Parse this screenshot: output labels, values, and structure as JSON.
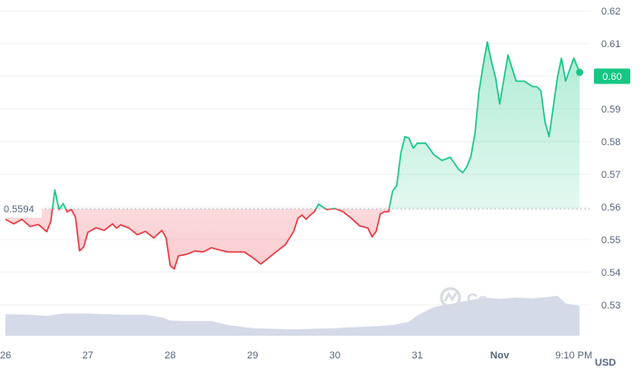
{
  "chart_data": {
    "type": "line",
    "currency": "USD",
    "ylim": [
      0.525,
      0.62
    ],
    "y_ticks": [
      "0.62",
      "0.61",
      "0.60",
      "0.59",
      "0.58",
      "0.57",
      "0.56",
      "0.55",
      "0.54",
      "0.53"
    ],
    "x_ticks": [
      {
        "label": "26",
        "t": 0.0
      },
      {
        "label": "27",
        "t": 1.0
      },
      {
        "label": "28",
        "t": 2.0
      },
      {
        "label": "29",
        "t": 3.0
      },
      {
        "label": "30",
        "t": 4.0
      },
      {
        "label": "31",
        "t": 5.0
      },
      {
        "label": "Nov",
        "t": 6.0,
        "bold": true
      },
      {
        "label": "9:10 PM",
        "t": 6.9
      }
    ],
    "xlim": [
      0.0,
      7.0
    ],
    "reference_price": 0.5594,
    "reference_label": "0.5594",
    "current_price": 0.6,
    "current_label": "0.60",
    "colors": {
      "up": "#16c784",
      "down": "#ea3943",
      "volume": "#cfd6e4",
      "grid": "#eff2f5",
      "tick": "#58667e"
    },
    "price_series": {
      "t": [
        0.0,
        0.1,
        0.2,
        0.3,
        0.4,
        0.5,
        0.55,
        0.6,
        0.65,
        0.7,
        0.75,
        0.8,
        0.85,
        0.9,
        0.95,
        1.0,
        1.1,
        1.2,
        1.3,
        1.35,
        1.4,
        1.5,
        1.6,
        1.7,
        1.8,
        1.9,
        1.95,
        2.0,
        2.05,
        2.1,
        2.2,
        2.3,
        2.4,
        2.5,
        2.6,
        2.7,
        2.8,
        2.9,
        3.0,
        3.1,
        3.2,
        3.3,
        3.4,
        3.5,
        3.55,
        3.6,
        3.65,
        3.7,
        3.75,
        3.8,
        3.9,
        4.0,
        4.1,
        4.2,
        4.3,
        4.4,
        4.45,
        4.5,
        4.55,
        4.6,
        4.65,
        4.7,
        4.75,
        4.8,
        4.85,
        4.9,
        4.95,
        5.0,
        5.1,
        5.2,
        5.3,
        5.4,
        5.5,
        5.55,
        5.6,
        5.65,
        5.7,
        5.75,
        5.8,
        5.85,
        5.9,
        5.95,
        6.0,
        6.1,
        6.2,
        6.3,
        6.4,
        6.45,
        6.5,
        6.55,
        6.6,
        6.7,
        6.75,
        6.8,
        6.9,
        6.97
      ],
      "values": [
        0.5562,
        0.5548,
        0.5562,
        0.554,
        0.5546,
        0.5524,
        0.5555,
        0.5652,
        0.5592,
        0.561,
        0.5585,
        0.5592,
        0.5568,
        0.5465,
        0.5478,
        0.5522,
        0.5536,
        0.5528,
        0.5548,
        0.5535,
        0.5545,
        0.5535,
        0.5515,
        0.5525,
        0.5505,
        0.5528,
        0.5505,
        0.542,
        0.541,
        0.545,
        0.5455,
        0.5465,
        0.5462,
        0.5475,
        0.5468,
        0.5462,
        0.5462,
        0.5462,
        0.5445,
        0.5425,
        0.5445,
        0.5465,
        0.5485,
        0.5525,
        0.5565,
        0.5575,
        0.5562,
        0.5575,
        0.5585,
        0.5608,
        0.5592,
        0.5595,
        0.5585,
        0.5565,
        0.5542,
        0.5535,
        0.5508,
        0.5525,
        0.5578,
        0.5585,
        0.5585,
        0.5648,
        0.5665,
        0.5765,
        0.5815,
        0.581,
        0.578,
        0.5795,
        0.5795,
        0.576,
        0.5742,
        0.5752,
        0.5715,
        0.5705,
        0.5722,
        0.5755,
        0.5825,
        0.5955,
        0.6035,
        0.6105,
        0.6045,
        0.5995,
        0.5915,
        0.6065,
        0.5985,
        0.5985,
        0.5968,
        0.5968,
        0.5955,
        0.586,
        0.5815,
        0.5995,
        0.6055,
        0.5985,
        0.6055,
        0.6012
      ]
    },
    "volume_series": {
      "t": [
        0.0,
        0.3,
        0.5,
        0.6,
        0.7,
        1.0,
        1.2,
        1.5,
        1.7,
        1.9,
        2.0,
        2.2,
        2.5,
        2.7,
        3.0,
        3.2,
        3.5,
        4.0,
        4.3,
        4.5,
        4.7,
        4.9,
        5.0,
        5.2,
        5.4,
        5.6,
        5.8,
        6.0,
        6.2,
        6.4,
        6.6,
        6.7,
        6.8,
        6.97
      ],
      "values": [
        0.34,
        0.33,
        0.31,
        0.33,
        0.35,
        0.35,
        0.34,
        0.33,
        0.33,
        0.29,
        0.24,
        0.23,
        0.23,
        0.17,
        0.12,
        0.11,
        0.1,
        0.12,
        0.14,
        0.15,
        0.17,
        0.22,
        0.32,
        0.45,
        0.5,
        0.55,
        0.6,
        0.58,
        0.6,
        0.59,
        0.61,
        0.63,
        0.51,
        0.47
      ]
    },
    "volume_max": 1.0
  }
}
